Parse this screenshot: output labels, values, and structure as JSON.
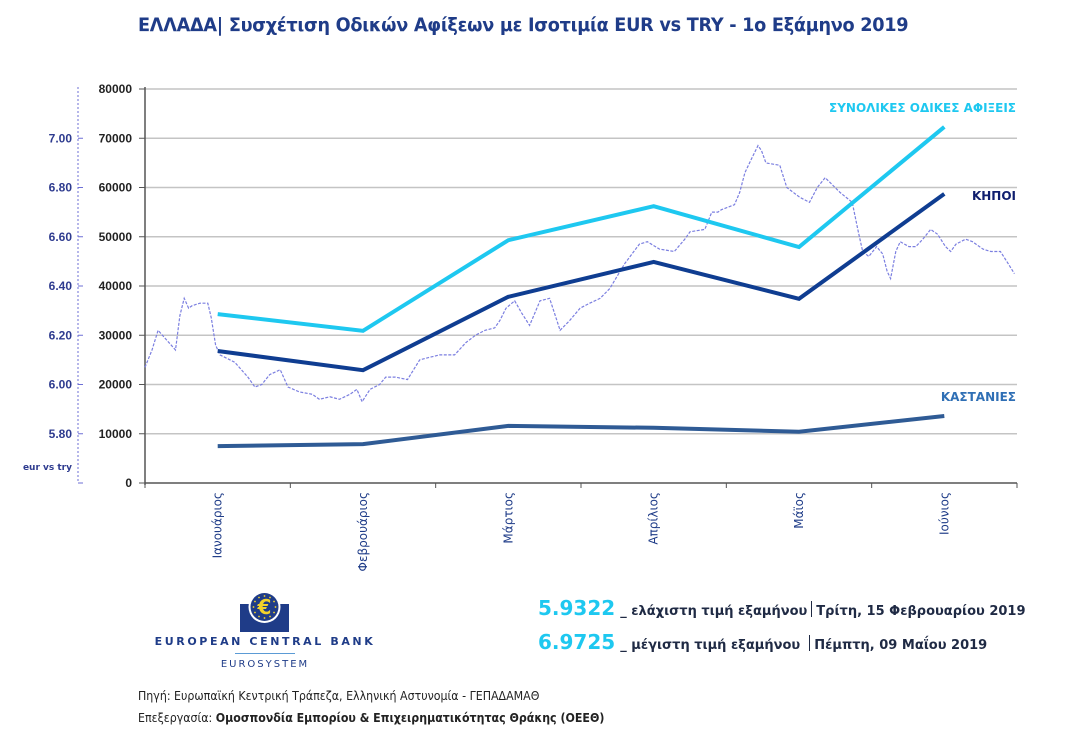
{
  "title": "ΕΛΛΑΔΑ| Συσχέτιση Οδικών Αφίξεων με Ισοτιμία EUR vs TRY - 1ο Εξάμηνο 2019",
  "chart_data": {
    "type": "line",
    "title": "ΕΛΛΑΔΑ| Συσχέτιση Οδικών Αφίξεων με Ισοτιμία EUR vs TRY - 1ο Εξάμηνο 2019",
    "categories": [
      "Ιανουάριος",
      "Φεβρουάριος",
      "Μάρτιος",
      "Απρίλιος",
      "Μάϊος",
      "Ιούνιος"
    ],
    "xlabel": "",
    "ylabel": "",
    "ylim": [
      0,
      80000
    ],
    "yticks": [
      "0",
      "10000",
      "20000",
      "30000",
      "40000",
      "50000",
      "60000",
      "70000",
      "80000"
    ],
    "grid": true,
    "series": [
      {
        "name": "ΣΥΝΟΛΙΚΕΣ ΟΔΙΚΕΣ ΑΦΙΞΕΙΣ",
        "color": "#1ec8f0",
        "values": [
          34300,
          30900,
          49300,
          56200,
          47900,
          72300
        ]
      },
      {
        "name": "ΚΗΠΟΙ",
        "color": "#0f3d91",
        "values": [
          26800,
          22900,
          37800,
          44900,
          37400,
          58700
        ]
      },
      {
        "name": "ΚΑΣΤΑΝΙΕΣ",
        "color": "#2f5b95",
        "values": [
          7500,
          7900,
          11600,
          11200,
          10400,
          13600
        ]
      }
    ],
    "secondary_axis": {
      "label": "eur vs try",
      "ylim": [
        5.6,
        7.2
      ],
      "yticks": [
        "5.80",
        "6.00",
        "6.20",
        "6.40",
        "6.60",
        "6.80",
        "7.00"
      ],
      "series": {
        "name": "EUR vs TRY",
        "color": "#7b7fe0",
        "style": "dashed",
        "x_range": [
          "2019-01-01",
          "2019-06-30"
        ],
        "points": [
          [
            0.0,
            6.07
          ],
          [
            0.008,
            6.14
          ],
          [
            0.015,
            6.22
          ],
          [
            0.02,
            6.2
          ],
          [
            0.035,
            6.14
          ],
          [
            0.04,
            6.28
          ],
          [
            0.045,
            6.35
          ],
          [
            0.05,
            6.31
          ],
          [
            0.054,
            6.32
          ],
          [
            0.063,
            6.33
          ],
          [
            0.072,
            6.33
          ],
          [
            0.076,
            6.27
          ],
          [
            0.081,
            6.16
          ],
          [
            0.086,
            6.12
          ],
          [
            0.103,
            6.09
          ],
          [
            0.118,
            6.03
          ],
          [
            0.126,
            5.99
          ],
          [
            0.134,
            6.0
          ],
          [
            0.143,
            6.04
          ],
          [
            0.155,
            6.06
          ],
          [
            0.164,
            5.99
          ],
          [
            0.177,
            5.97
          ],
          [
            0.192,
            5.96
          ],
          [
            0.2,
            5.94
          ],
          [
            0.212,
            5.95
          ],
          [
            0.223,
            5.94
          ],
          [
            0.235,
            5.96
          ],
          [
            0.243,
            5.98
          ],
          [
            0.249,
            5.93
          ],
          [
            0.258,
            5.98
          ],
          [
            0.269,
            6.0
          ],
          [
            0.276,
            6.03
          ],
          [
            0.287,
            6.03
          ],
          [
            0.301,
            6.02
          ],
          [
            0.308,
            6.06
          ],
          [
            0.315,
            6.1
          ],
          [
            0.326,
            6.11
          ],
          [
            0.338,
            6.12
          ],
          [
            0.355,
            6.12
          ],
          [
            0.368,
            6.17
          ],
          [
            0.379,
            6.2
          ],
          [
            0.39,
            6.22
          ],
          [
            0.401,
            6.23
          ],
          [
            0.407,
            6.26
          ],
          [
            0.414,
            6.31
          ],
          [
            0.424,
            6.34
          ],
          [
            0.432,
            6.29
          ],
          [
            0.441,
            6.24
          ],
          [
            0.453,
            6.34
          ],
          [
            0.464,
            6.35
          ],
          [
            0.476,
            6.22
          ],
          [
            0.487,
            6.26
          ],
          [
            0.499,
            6.31
          ],
          [
            0.51,
            6.33
          ],
          [
            0.522,
            6.35
          ],
          [
            0.533,
            6.39
          ],
          [
            0.55,
            6.49
          ],
          [
            0.567,
            6.57
          ],
          [
            0.576,
            6.58
          ],
          [
            0.59,
            6.55
          ],
          [
            0.607,
            6.54
          ],
          [
            0.619,
            6.59
          ],
          [
            0.625,
            6.62
          ],
          [
            0.642,
            6.63
          ],
          [
            0.65,
            6.7
          ],
          [
            0.657,
            6.7
          ],
          [
            0.661,
            6.71
          ],
          [
            0.676,
            6.73
          ],
          [
            0.682,
            6.78
          ],
          [
            0.688,
            6.86
          ],
          [
            0.696,
            6.92
          ],
          [
            0.703,
            6.97
          ],
          [
            0.707,
            6.95
          ],
          [
            0.712,
            6.9
          ],
          [
            0.728,
            6.89
          ],
          [
            0.736,
            6.8
          ],
          [
            0.751,
            6.76
          ],
          [
            0.762,
            6.74
          ],
          [
            0.771,
            6.8
          ],
          [
            0.78,
            6.84
          ],
          [
            0.797,
            6.78
          ],
          [
            0.811,
            6.74
          ],
          [
            0.818,
            6.62
          ],
          [
            0.823,
            6.54
          ],
          [
            0.83,
            6.52
          ],
          [
            0.839,
            6.56
          ],
          [
            0.846,
            6.53
          ],
          [
            0.851,
            6.46
          ],
          [
            0.855,
            6.43
          ],
          [
            0.861,
            6.54
          ],
          [
            0.866,
            6.58
          ],
          [
            0.876,
            6.56
          ],
          [
            0.884,
            6.56
          ],
          [
            0.892,
            6.59
          ],
          [
            0.901,
            6.63
          ],
          [
            0.909,
            6.61
          ],
          [
            0.918,
            6.56
          ],
          [
            0.924,
            6.54
          ],
          [
            0.93,
            6.57
          ],
          [
            0.941,
            6.59
          ],
          [
            0.949,
            6.58
          ],
          [
            0.961,
            6.55
          ],
          [
            0.97,
            6.54
          ],
          [
            0.981,
            6.54
          ],
          [
            0.99,
            6.49
          ],
          [
            0.997,
            6.45
          ]
        ]
      }
    }
  },
  "stats": {
    "min": {
      "value": "5.9322",
      "label": "_ ελάχιστη τιμή εξαμήνου",
      "date": "Τρίτη, 15 Φεβρουαρίου 2019"
    },
    "max": {
      "value": "6.9725",
      "label": "_ μέγιστη  τιμή εξαμήνου",
      "date": "Πέμπτη, 09 Μαΐου 2019"
    }
  },
  "logo": {
    "name": "EUROPEAN CENTRAL BANK",
    "subtitle": "EUROSYSTEM",
    "symbol": "€"
  },
  "footer": {
    "source": "Πηγή: Ευρωπαϊκή Κεντρική Τράπεζα, Ελληνική Αστυνομία - ΓΕΠΑΔΑΜΑΘ",
    "processing_label": "Επεξεργασία: ",
    "processing_org": "Ομοσπονδία Εμπορίου & Επιχειρηματικότητας Θράκης (ΟΕΕΘ)"
  }
}
